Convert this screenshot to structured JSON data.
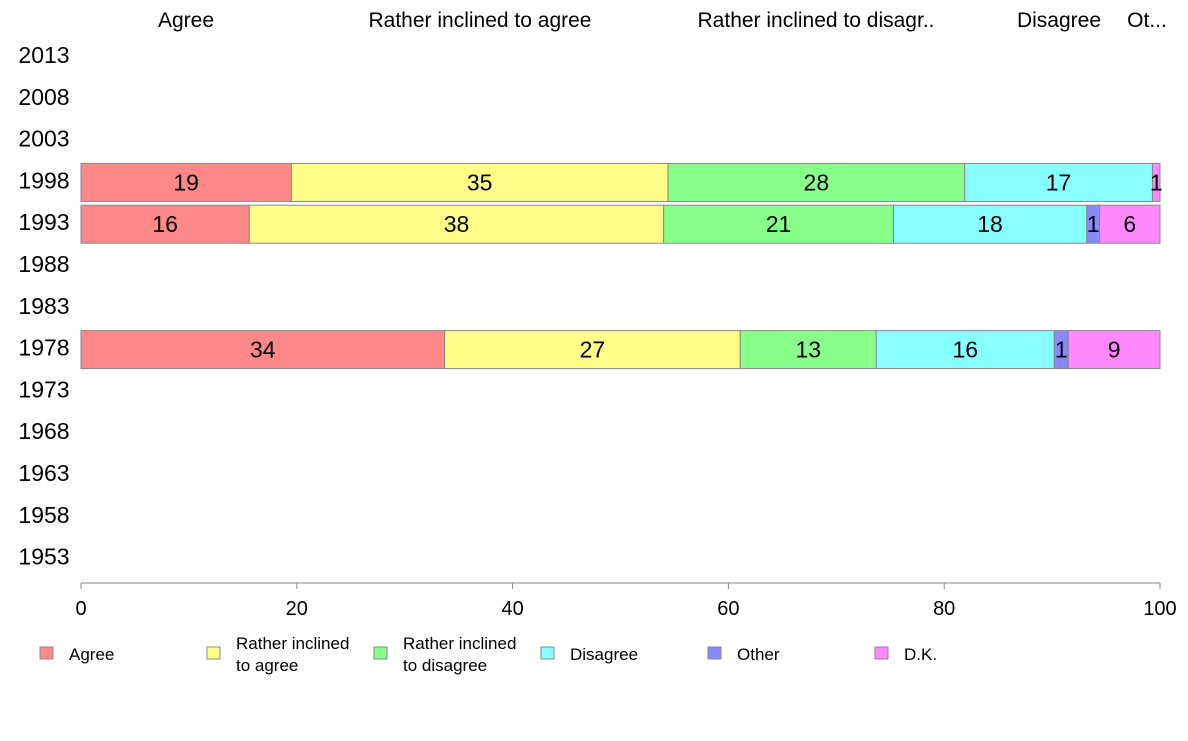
{
  "chart_data": {
    "type": "bar",
    "orientation": "horizontal",
    "stacked": true,
    "categories": [
      "2013",
      "2008",
      "2003",
      "1998",
      "1993",
      "1988",
      "1983",
      "1978",
      "1973",
      "1968",
      "1963",
      "1958",
      "1953"
    ],
    "xlim": [
      0,
      100
    ],
    "xticks": [
      0,
      20,
      40,
      60,
      80,
      100
    ],
    "top_labels": [
      "Agree",
      "Rather inclined to agree",
      "Rather inclined to disagr..",
      "Disagree",
      "Ot..."
    ],
    "legend_position": "bottom",
    "grid": false,
    "series": [
      {
        "name": "Agree",
        "legend_label": [
          "Agree"
        ],
        "color": "#ff8888",
        "values": [
          null,
          null,
          null,
          19.5,
          15.6,
          null,
          null,
          33.7,
          null,
          null,
          null,
          null,
          null
        ],
        "labels": [
          "",
          "",
          "",
          "19",
          "16",
          "",
          "",
          "34",
          "",
          "",
          "",
          "",
          ""
        ]
      },
      {
        "name": "Rather inclined to agree",
        "legend_label": [
          "Rather inclined",
          "to agree"
        ],
        "color": "#ffff88",
        "values": [
          null,
          null,
          null,
          34.9,
          38.4,
          null,
          null,
          27.4,
          null,
          null,
          null,
          null,
          null
        ],
        "labels": [
          "",
          "",
          "",
          "35",
          "38",
          "",
          "",
          "27",
          "",
          "",
          "",
          "",
          ""
        ]
      },
      {
        "name": "Rather inclined to disagree",
        "legend_label": [
          "Rather inclined",
          "to disagree"
        ],
        "color": "#88ff88",
        "values": [
          null,
          null,
          null,
          27.5,
          21.3,
          null,
          null,
          12.6,
          null,
          null,
          null,
          null,
          null
        ],
        "labels": [
          "",
          "",
          "",
          "28",
          "21",
          "",
          "",
          "13",
          "",
          "",
          "",
          "",
          ""
        ]
      },
      {
        "name": "Disagree",
        "legend_label": [
          "Disagree"
        ],
        "color": "#88ffff",
        "values": [
          null,
          null,
          null,
          17.4,
          17.9,
          null,
          null,
          16.5,
          null,
          null,
          null,
          null,
          null
        ],
        "labels": [
          "",
          "",
          "",
          "17",
          "18",
          "",
          "",
          "16",
          "",
          "",
          "",
          "",
          ""
        ]
      },
      {
        "name": "Other",
        "legend_label": [
          "Other"
        ],
        "color": "#8888ff",
        "values": [
          null,
          null,
          null,
          0,
          1.2,
          null,
          null,
          1.3,
          null,
          null,
          null,
          null,
          null
        ],
        "labels": [
          "",
          "",
          "",
          "",
          "1",
          "",
          "",
          "1",
          "",
          "",
          "",
          "",
          ""
        ]
      },
      {
        "name": "D.K.",
        "legend_label": [
          "D.K."
        ],
        "color": "#ff88ff",
        "values": [
          null,
          null,
          null,
          0.7,
          5.6,
          null,
          null,
          8.5,
          null,
          null,
          null,
          null,
          null
        ],
        "labels": [
          "",
          "",
          "",
          "1",
          "6",
          "",
          "",
          "9",
          "",
          "",
          "",
          "",
          ""
        ]
      }
    ]
  }
}
